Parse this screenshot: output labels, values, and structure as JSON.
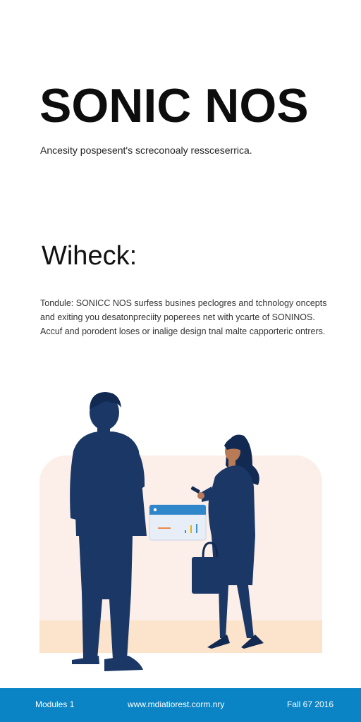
{
  "header": {
    "title": "SONIC NOS",
    "subtitle": "Ancesity pospesent's screconoaly ressceserrica."
  },
  "section": {
    "heading": "Wiheck:",
    "body_lines": [
      "Tondule: SONICC NOS surfess busines peclogres and tchnology oncepts",
      "and exiting you desatonpreciity poperees net with ycarte of SONINOS.",
      "Accuf and porodent loses or inalige design tnal malte capporteric ontrers."
    ]
  },
  "illustration": {
    "description_icon": "business-people-icon",
    "colors": {
      "navy": "#1a3766",
      "panel": "#fcefe9",
      "floor": "#fbe3cc",
      "card_header": "#2f86c9",
      "accent_orange": "#e98a4d",
      "accent_blue": "#3a8fd0",
      "accent_teal": "#20a6b8",
      "skin": "#b97a56"
    }
  },
  "footer": {
    "left": "Modules 1",
    "center": "www.mdiatiorest.corm.nry",
    "right": "Fall 67 2016",
    "background": "#0b84c6"
  }
}
